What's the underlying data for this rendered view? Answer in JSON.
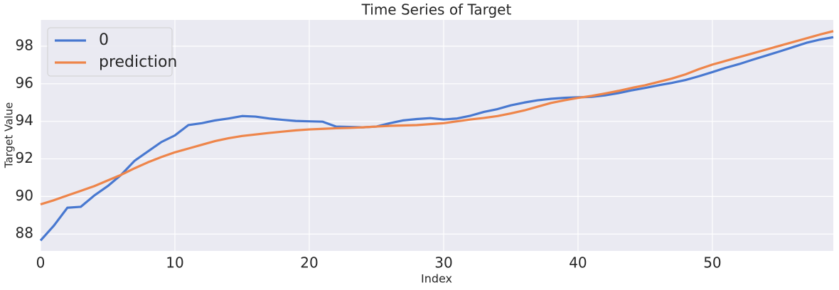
{
  "chart_data": {
    "type": "line",
    "title": "Time Series of Target",
    "xlabel": "Index",
    "ylabel": "Target Value",
    "x": [
      0,
      1,
      2,
      3,
      4,
      5,
      6,
      7,
      8,
      9,
      10,
      11,
      12,
      13,
      14,
      15,
      16,
      17,
      18,
      19,
      20,
      21,
      22,
      23,
      24,
      25,
      26,
      27,
      28,
      29,
      30,
      31,
      32,
      33,
      34,
      35,
      36,
      37,
      38,
      39,
      40,
      41,
      42,
      43,
      44,
      45,
      46,
      47,
      48,
      49,
      50,
      51,
      52,
      53,
      54,
      55,
      56,
      57,
      58,
      59
    ],
    "series": [
      {
        "name": "0",
        "color": "#4878d0",
        "values": [
          87.65,
          88.45,
          89.4,
          89.45,
          90.05,
          90.55,
          91.15,
          91.9,
          92.4,
          92.9,
          93.25,
          93.8,
          93.9,
          94.05,
          94.15,
          94.28,
          94.25,
          94.15,
          94.08,
          94.02,
          94.0,
          93.98,
          93.72,
          93.7,
          93.68,
          93.72,
          93.9,
          94.05,
          94.12,
          94.17,
          94.1,
          94.15,
          94.3,
          94.5,
          94.65,
          94.85,
          95.0,
          95.12,
          95.2,
          95.25,
          95.28,
          95.3,
          95.38,
          95.5,
          95.65,
          95.78,
          95.92,
          96.05,
          96.2,
          96.4,
          96.62,
          96.85,
          97.05,
          97.28,
          97.5,
          97.72,
          97.95,
          98.18,
          98.35,
          98.48
        ]
      },
      {
        "name": "prediction",
        "color": "#ee854a",
        "values": [
          89.58,
          89.8,
          90.05,
          90.3,
          90.55,
          90.85,
          91.15,
          91.5,
          91.82,
          92.1,
          92.35,
          92.55,
          92.75,
          92.95,
          93.1,
          93.22,
          93.3,
          93.38,
          93.45,
          93.52,
          93.57,
          93.6,
          93.63,
          93.65,
          93.68,
          93.72,
          93.76,
          93.78,
          93.8,
          93.85,
          93.9,
          94.0,
          94.1,
          94.18,
          94.28,
          94.42,
          94.58,
          94.78,
          94.98,
          95.12,
          95.25,
          95.35,
          95.48,
          95.62,
          95.78,
          95.92,
          96.1,
          96.28,
          96.5,
          96.78,
          97.02,
          97.22,
          97.42,
          97.62,
          97.82,
          98.02,
          98.22,
          98.42,
          98.62,
          98.8
        ]
      }
    ],
    "xlim": [
      0,
      59
    ],
    "xticks": [
      0,
      10,
      20,
      30,
      40,
      50
    ],
    "ylim": [
      87.1,
      99.4
    ],
    "yticks": [
      88,
      90,
      92,
      94,
      96,
      98
    ],
    "grid": true,
    "legend": "upper-left"
  }
}
